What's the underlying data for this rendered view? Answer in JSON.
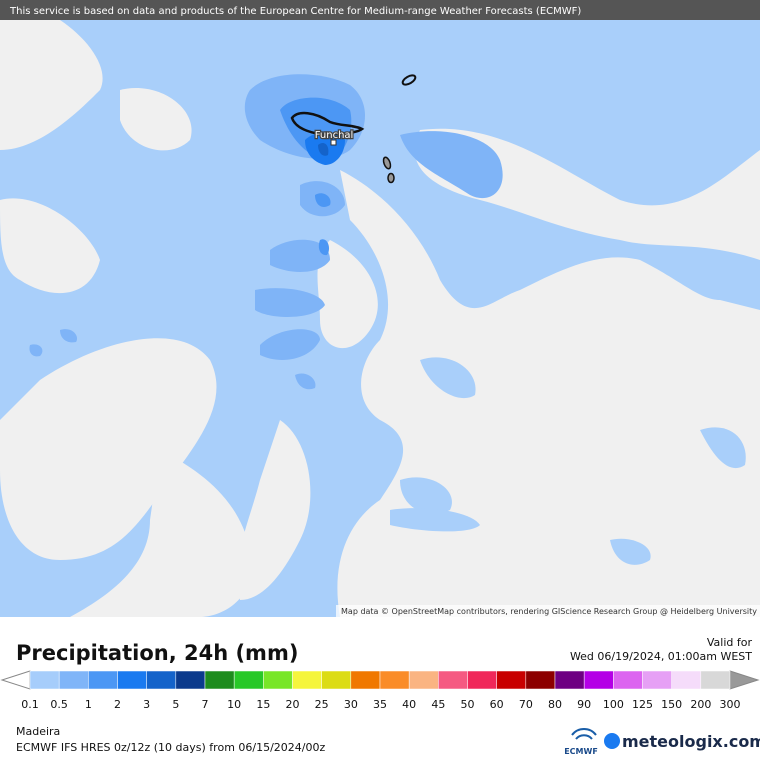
{
  "header": {
    "notice": "This service is based on data and products of the European Centre for Medium-range Weather Forecasts (ECMWF)"
  },
  "map": {
    "place_label": "Funchal",
    "attribution": "Map data © OpenStreetMap contributors, rendering GIScience Research Group @ Heidelberg University"
  },
  "legend": {
    "title": "Precipitation, 24h (mm)",
    "valid_label": "Valid for",
    "valid_time": "Wed 06/19/2024, 01:00am WEST",
    "ticks": [
      "0.1",
      "0.5",
      "1",
      "2",
      "3",
      "5",
      "7",
      "10",
      "15",
      "20",
      "25",
      "30",
      "35",
      "40",
      "45",
      "50",
      "60",
      "70",
      "80",
      "90",
      "100",
      "125",
      "150",
      "200",
      "300"
    ],
    "colors": [
      "#a6cdfb",
      "#80b5f8",
      "#4c97f4",
      "#1a7af0",
      "#1463ca",
      "#0b3a8c",
      "#1e8c1e",
      "#28c828",
      "#78e628",
      "#f5f53c",
      "#dcdc14",
      "#f07800",
      "#fa8c28",
      "#fab482",
      "#f55a82",
      "#f0285a",
      "#c80000",
      "#8c0000",
      "#6e0082",
      "#b400e6",
      "#dc64f0",
      "#e6a0f5",
      "#f5dcfa",
      "#d8d8d8"
    ]
  },
  "footer": {
    "region": "Madeira",
    "model": "ECMWF IFS HRES 0z/12z (10 days) from  06/15/2024/00z",
    "ecmwf_logo": "ECMWF",
    "brand": "meteologix.com"
  }
}
